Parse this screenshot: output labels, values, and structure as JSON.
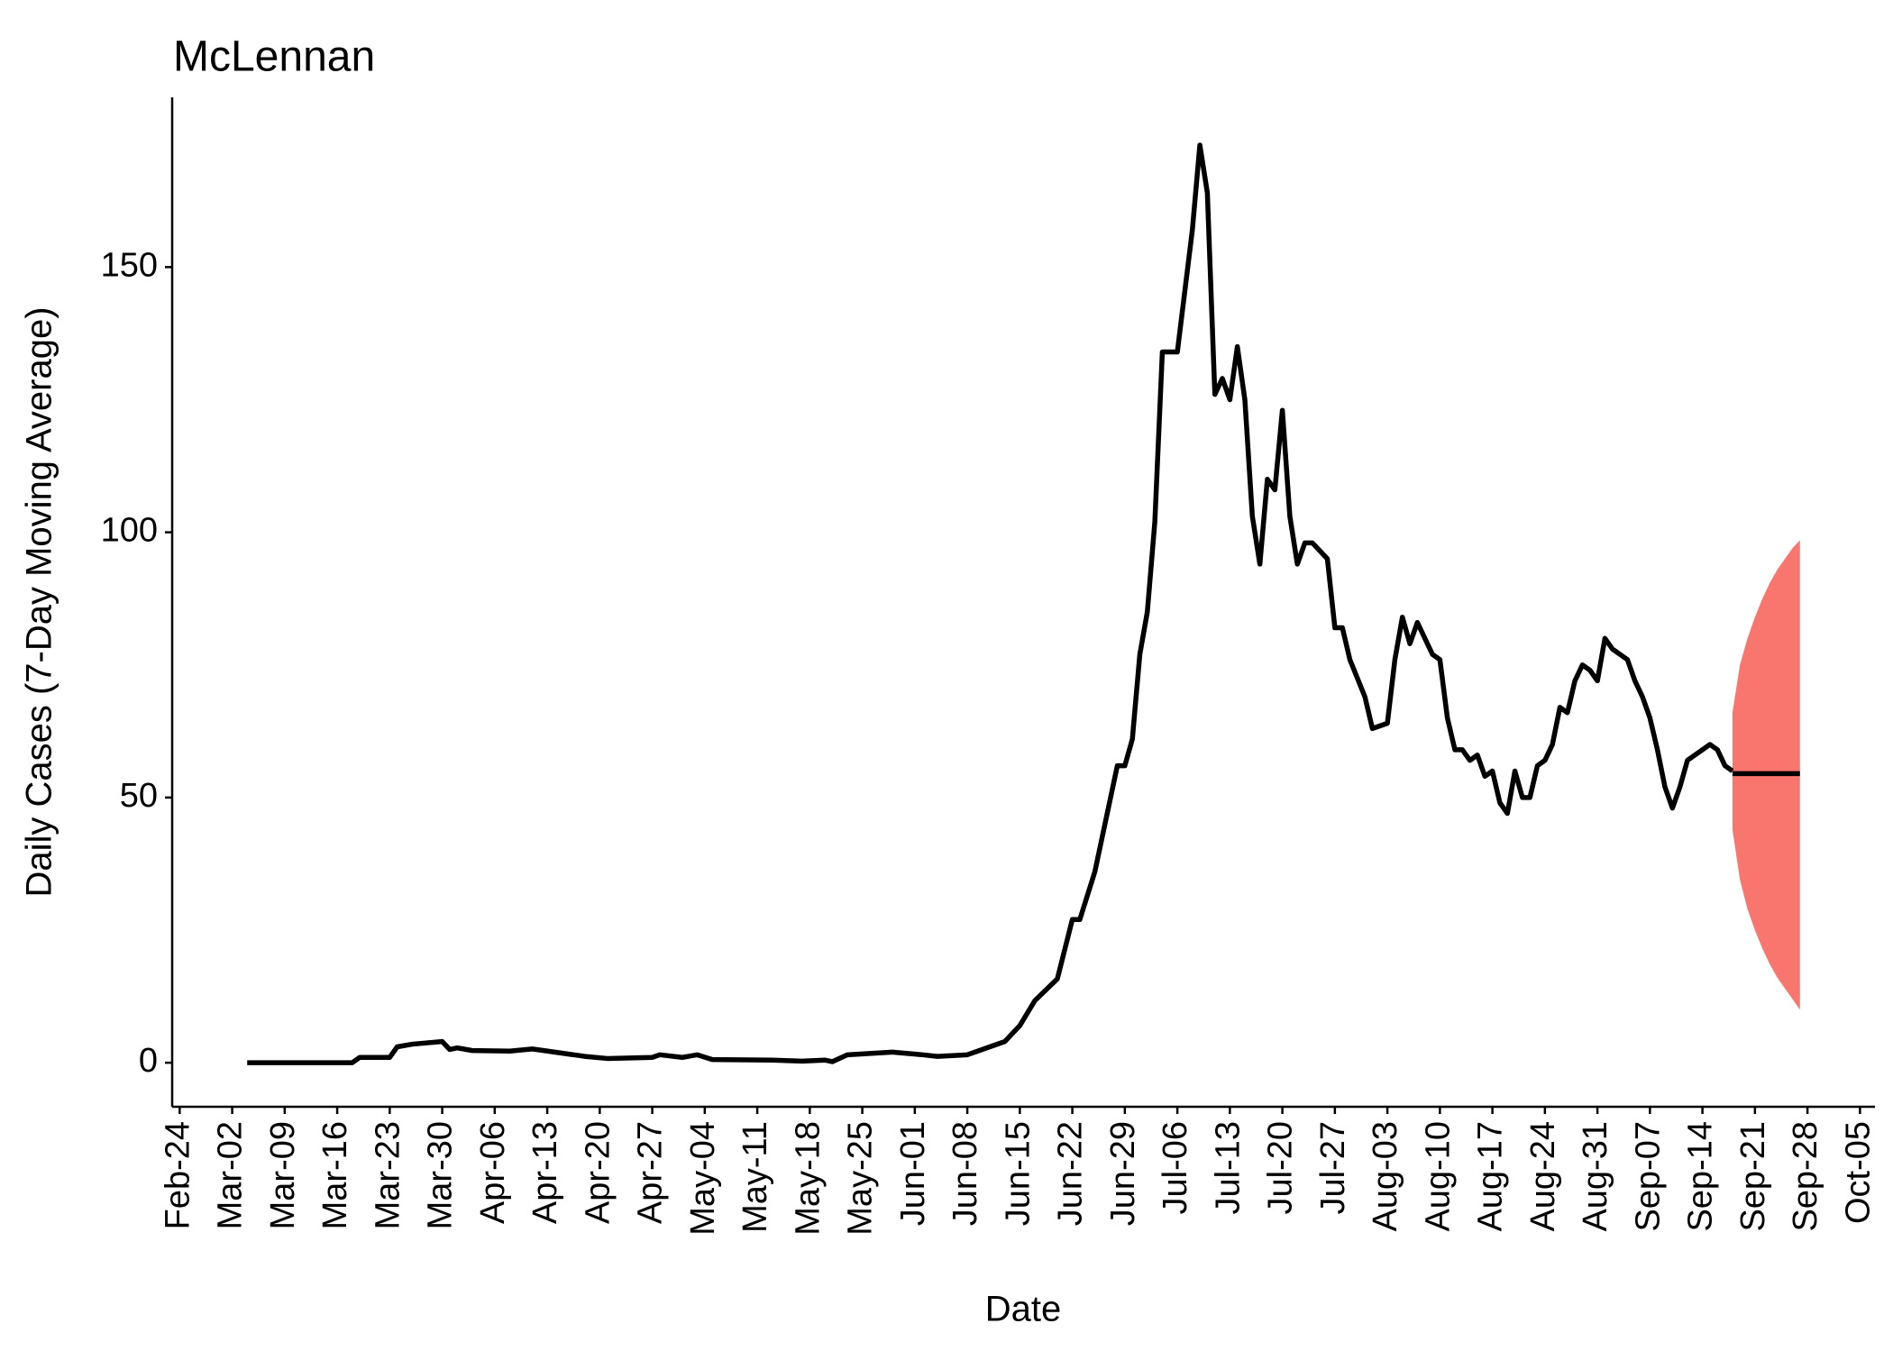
{
  "chart_data": {
    "type": "line",
    "title": "McLennan",
    "x_label": "Date",
    "y_label": "Daily Cases (7-Day Moving Average)",
    "xlim": [
      "Feb-23",
      "Oct-07"
    ],
    "ylim": [
      -8.3,
      182
    ],
    "xticks": [
      "Feb-24",
      "Mar-02",
      "Mar-09",
      "Mar-16",
      "Mar-23",
      "Mar-30",
      "Apr-06",
      "Apr-13",
      "Apr-20",
      "Apr-27",
      "May-04",
      "May-11",
      "May-18",
      "May-25",
      "Jun-01",
      "Jun-08",
      "Jun-15",
      "Jun-22",
      "Jun-29",
      "Jul-06",
      "Jul-13",
      "Jul-20",
      "Jul-27",
      "Aug-03",
      "Aug-10",
      "Aug-17",
      "Aug-24",
      "Aug-31",
      "Sep-07",
      "Sep-14",
      "Sep-21",
      "Sep-28",
      "Oct-05"
    ],
    "yticks": [
      0,
      50,
      100,
      150
    ],
    "grid": false,
    "band": {
      "color": "#f8766d",
      "x": [
        "Sep-18",
        "Sep-19",
        "Sep-20",
        "Sep-21",
        "Sep-22",
        "Sep-23",
        "Sep-24",
        "Sep-25",
        "Sep-26",
        "Sep-27"
      ],
      "lower": [
        44,
        34.5,
        29,
        25,
        21.5,
        18.5,
        16,
        14,
        12,
        10
      ],
      "upper": [
        66,
        75,
        80,
        84,
        87.5,
        90.5,
        93,
        95,
        97,
        98.5
      ]
    },
    "series": [
      {
        "color": "#000000",
        "x": [
          "Mar-04",
          "Mar-18",
          "Mar-19",
          "Mar-23",
          "Mar-24",
          "Mar-26",
          "Mar-30",
          "Mar-31",
          "Apr-01",
          "Apr-03",
          "Apr-08",
          "Apr-11",
          "Apr-12",
          "Apr-18",
          "Apr-21",
          "Apr-27",
          "Apr-28",
          "May-01",
          "May-03",
          "May-05",
          "May-13",
          "May-17",
          "May-20",
          "May-21",
          "May-23",
          "May-29",
          "Jun-02",
          "Jun-04",
          "Jun-08",
          "Jun-11",
          "Jun-13",
          "Jun-15",
          "Jun-17",
          "Jun-20",
          "Jun-22",
          "Jun-23",
          "Jun-25",
          "Jun-28",
          "Jun-29",
          "Jun-30",
          "Jul-01",
          "Jul-02",
          "Jul-03",
          "Jul-04",
          "Jul-06",
          "Jul-08",
          "Jul-09",
          "Jul-10",
          "Jul-11",
          "Jul-12",
          "Jul-13",
          "Jul-14",
          "Jul-15",
          "Jul-16",
          "Jul-17",
          "Jul-18",
          "Jul-19",
          "Jul-20",
          "Jul-21",
          "Jul-22",
          "Jul-23",
          "Jul-24",
          "Jul-26",
          "Jul-27",
          "Jul-28",
          "Jul-29",
          "Jul-31",
          "Aug-01",
          "Aug-03",
          "Aug-04",
          "Aug-05",
          "Aug-06",
          "Aug-07",
          "Aug-08",
          "Aug-09",
          "Aug-10",
          "Aug-11",
          "Aug-12",
          "Aug-13",
          "Aug-14",
          "Aug-15",
          "Aug-16",
          "Aug-17",
          "Aug-18",
          "Aug-19",
          "Aug-20",
          "Aug-21",
          "Aug-22",
          "Aug-23",
          "Aug-24",
          "Aug-25",
          "Aug-26",
          "Aug-27",
          "Aug-28",
          "Aug-29",
          "Aug-30",
          "Aug-31",
          "Sep-01",
          "Sep-02",
          "Sep-04",
          "Sep-05",
          "Sep-06",
          "Sep-07",
          "Sep-08",
          "Sep-09",
          "Sep-10",
          "Sep-11",
          "Sep-12",
          "Sep-14",
          "Sep-15",
          "Sep-16",
          "Sep-17",
          "Sep-18"
        ],
        "values": [
          0,
          0,
          1,
          1,
          3,
          3.5,
          4,
          2.5,
          2.8,
          2.3,
          2.2,
          2.6,
          2.4,
          1.2,
          0.8,
          1,
          1.5,
          1,
          1.5,
          0.6,
          0.5,
          0.3,
          0.5,
          0.2,
          1.5,
          2,
          1.5,
          1.2,
          1.5,
          3,
          4,
          7,
          11.7,
          15.8,
          27,
          27,
          36,
          56,
          56,
          61,
          77,
          85,
          102,
          134,
          134,
          157,
          173,
          164,
          126,
          129,
          125,
          135,
          125,
          103,
          94,
          110,
          108,
          123,
          103,
          94,
          98,
          98,
          95,
          82,
          82,
          76,
          69,
          63,
          64,
          76,
          84,
          79,
          83,
          80,
          77,
          76,
          65,
          59,
          59,
          57,
          58,
          54,
          55,
          49,
          47,
          55,
          50,
          50,
          56,
          57,
          60,
          67,
          66,
          72,
          75,
          74,
          72,
          80,
          78,
          76,
          72,
          69,
          65,
          59,
          52,
          48,
          52,
          57,
          59,
          60,
          59,
          56,
          55
        ]
      },
      {
        "color": "#000000",
        "x": [
          "Sep-18",
          "Sep-27"
        ],
        "values": [
          54.5,
          54.5
        ]
      }
    ]
  }
}
